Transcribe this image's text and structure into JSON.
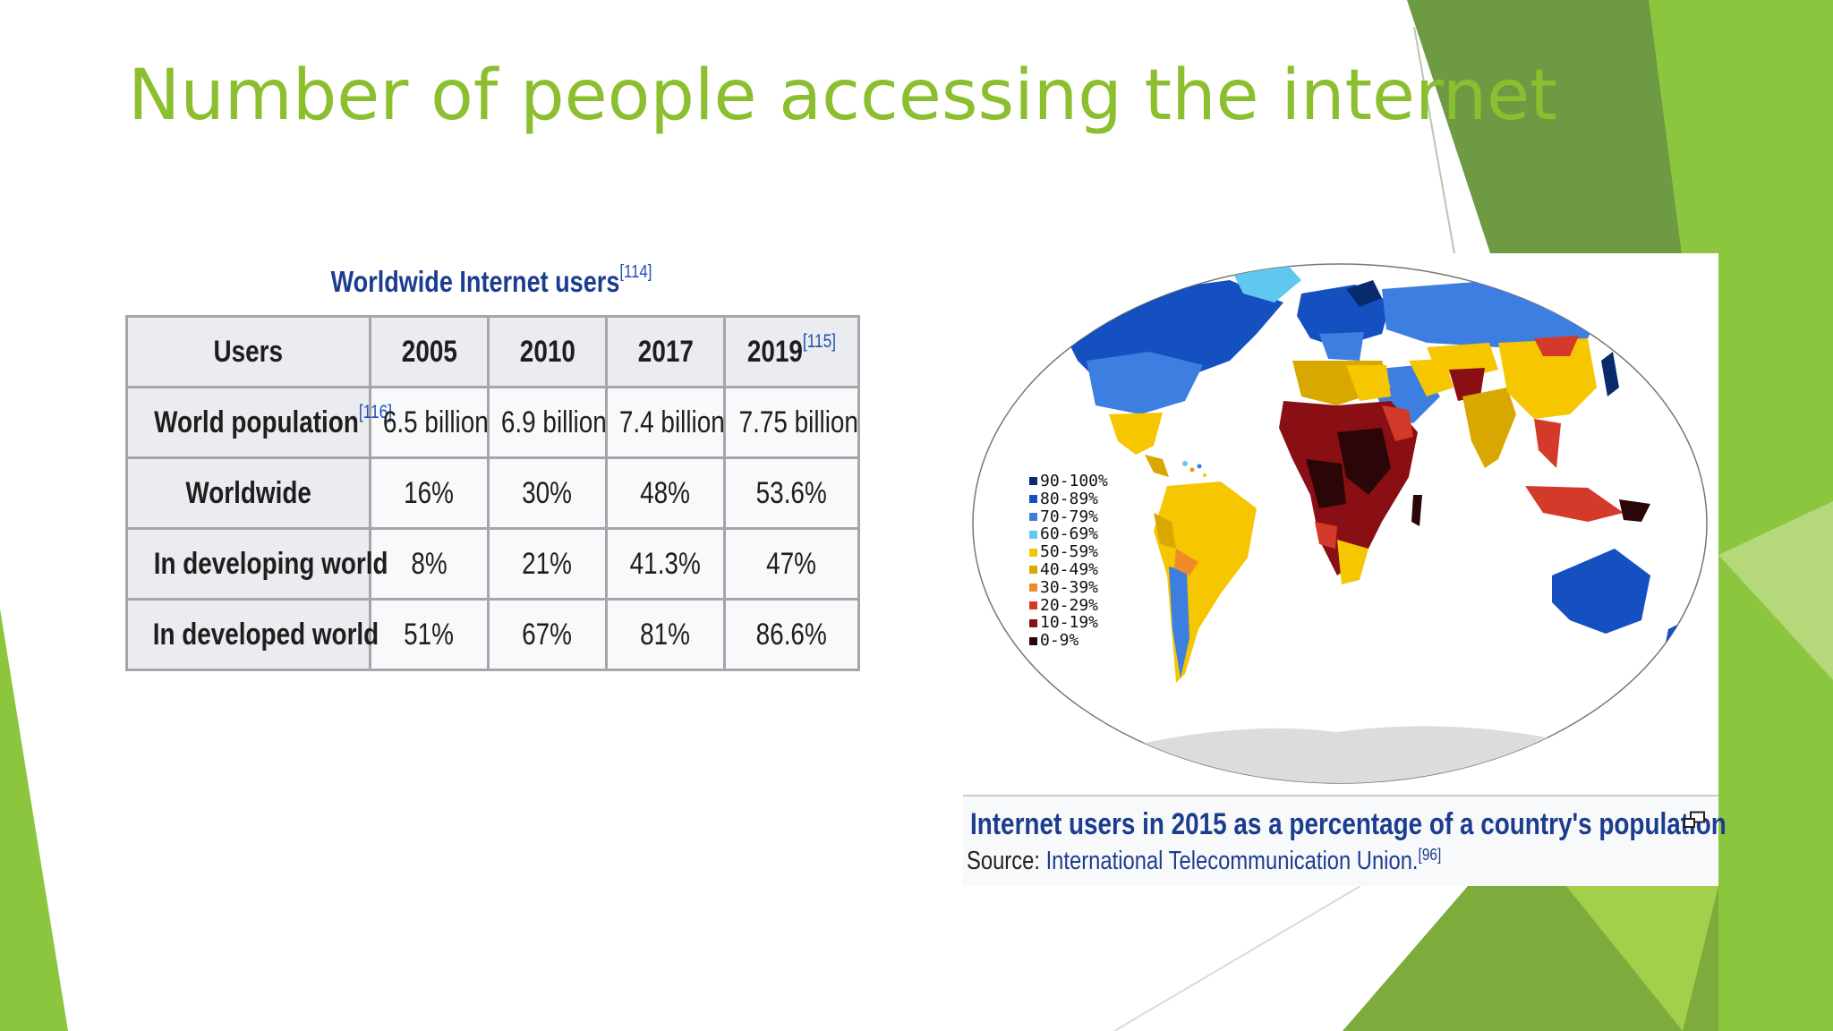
{
  "slide": {
    "title": "Number of people accessing the internet"
  },
  "table": {
    "caption": "Worldwide Internet users",
    "caption_ref": "[114]",
    "header": [
      {
        "label": "Users",
        "ref": ""
      },
      {
        "label": "2005",
        "ref": ""
      },
      {
        "label": "2010",
        "ref": ""
      },
      {
        "label": "2017",
        "ref": ""
      },
      {
        "label": "2019",
        "ref": "[115]"
      }
    ],
    "rows": [
      {
        "label": "World population",
        "ref": "[116]",
        "values": [
          "6.5 billion",
          "6.9 billion",
          "7.4 billion",
          "7.75 billion"
        ]
      },
      {
        "label": "Worldwide",
        "ref": "",
        "values": [
          "16%",
          "30%",
          "48%",
          "53.6%"
        ]
      },
      {
        "label": "In developing world",
        "ref": "",
        "values": [
          "8%",
          "21%",
          "41.3%",
          "47%"
        ]
      },
      {
        "label": "In developed world",
        "ref": "",
        "values": [
          "51%",
          "67%",
          "81%",
          "86.6%"
        ]
      }
    ]
  },
  "map": {
    "legend": [
      {
        "label": "90-100%",
        "color": "#0a2a6e"
      },
      {
        "label": "80-89%",
        "color": "#1450c0"
      },
      {
        "label": "70-79%",
        "color": "#3d7fe0"
      },
      {
        "label": "60-69%",
        "color": "#60c8f0"
      },
      {
        "label": "50-59%",
        "color": "#f6c600"
      },
      {
        "label": "40-49%",
        "color": "#d9a800"
      },
      {
        "label": "30-39%",
        "color": "#f08a2a"
      },
      {
        "label": "20-29%",
        "color": "#d43a2a"
      },
      {
        "label": "10-19%",
        "color": "#8a0f14"
      },
      {
        "label": "0-9%",
        "color": "#2a0608"
      }
    ],
    "caption": "Internet users in 2015 as a percentage of a country's population",
    "source_label": "Source:",
    "source_link": "International Telecommunication Union.",
    "source_ref": "[96]",
    "enlarge_icon": "enlarge-icon"
  },
  "theme": {
    "title_color": "#8cbf2f",
    "accent_greens": [
      "#6d9a43",
      "#8cc63f",
      "#a3cf4a"
    ],
    "table_header_bg": "#eaecf0",
    "table_cell_bg": "#f8f9fa",
    "link_color": "#1c3d8f"
  }
}
